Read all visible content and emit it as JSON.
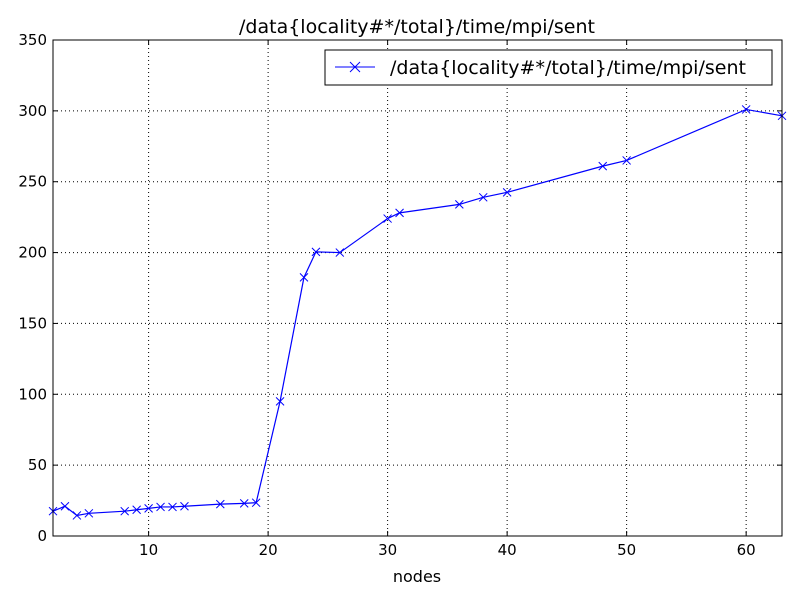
{
  "chart_data": {
    "type": "line",
    "title": "/data{locality#*/total}/time/mpi/sent",
    "xlabel": "nodes",
    "ylabel": "",
    "xlim": [
      2,
      63
    ],
    "ylim": [
      0,
      350
    ],
    "xticks": [
      10,
      20,
      30,
      40,
      50,
      60
    ],
    "yticks": [
      0,
      50,
      100,
      150,
      200,
      250,
      300,
      350
    ],
    "grid": true,
    "legend_position": "top-right",
    "series": [
      {
        "name": "/data{locality#*/total}/time/mpi/sent",
        "color": "#0000ff",
        "marker": "x",
        "x": [
          2,
          3,
          4,
          5,
          8,
          9,
          10,
          11,
          12,
          13,
          16,
          18,
          19,
          21,
          23,
          24,
          26,
          30,
          31,
          36,
          38,
          40,
          48,
          50,
          60,
          63
        ],
        "y": [
          17.5,
          21,
          14.5,
          16,
          17.5,
          18.5,
          19.5,
          20.5,
          20.5,
          21,
          22.5,
          23,
          23.5,
          95,
          182.5,
          200.5,
          200,
          224,
          228,
          234,
          239,
          242.5,
          261,
          265,
          301,
          296.5
        ]
      }
    ]
  }
}
